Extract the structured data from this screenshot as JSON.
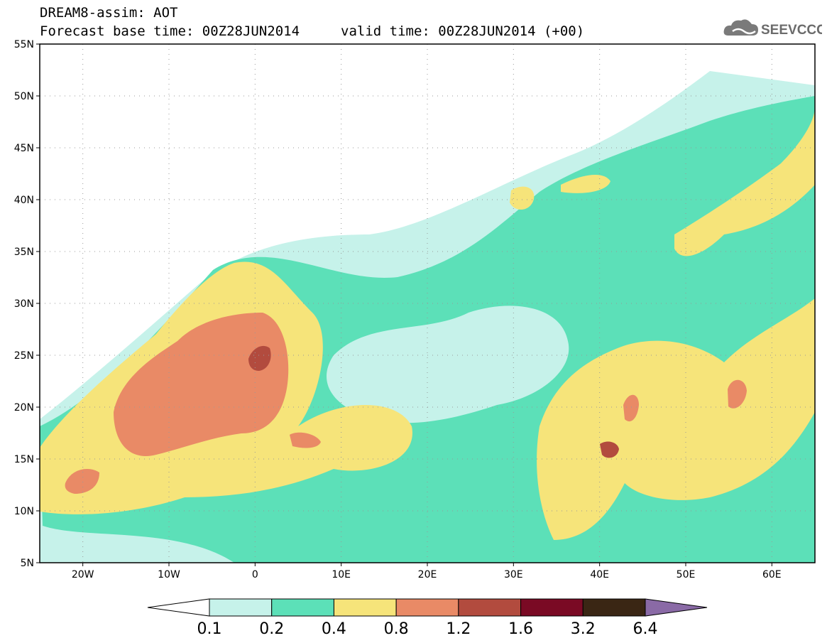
{
  "header": {
    "line1": "DREAM8-assim: AOT",
    "line2a": "Forecast base time: 00Z28JUN2014",
    "line2b": "valid time: 00Z28JUN2014 (+00)",
    "logo_text": "SEEVCCC"
  },
  "map": {
    "lon_range": [
      -25,
      65
    ],
    "lat_range": [
      5,
      55
    ],
    "lat_labels": [
      "55N",
      "50N",
      "45N",
      "40N",
      "35N",
      "30N",
      "25N",
      "20N",
      "15N",
      "10N",
      "5N"
    ],
    "lon_labels": [
      "20W",
      "10W",
      "0",
      "10E",
      "20E",
      "30E",
      "40E",
      "50E",
      "60E"
    ],
    "grid": "dotted"
  },
  "colorbar": {
    "colors": [
      "#ffffff",
      "#c6f2ea",
      "#5ce0b8",
      "#f6e47a",
      "#e98a66",
      "#b24b3e",
      "#7a0a24",
      "#3a2614",
      "#8a6aa6"
    ],
    "labels": [
      "0.1",
      "0.2",
      "0.4",
      "0.8",
      "1.2",
      "1.6",
      "3.2",
      "6.4"
    ]
  }
}
